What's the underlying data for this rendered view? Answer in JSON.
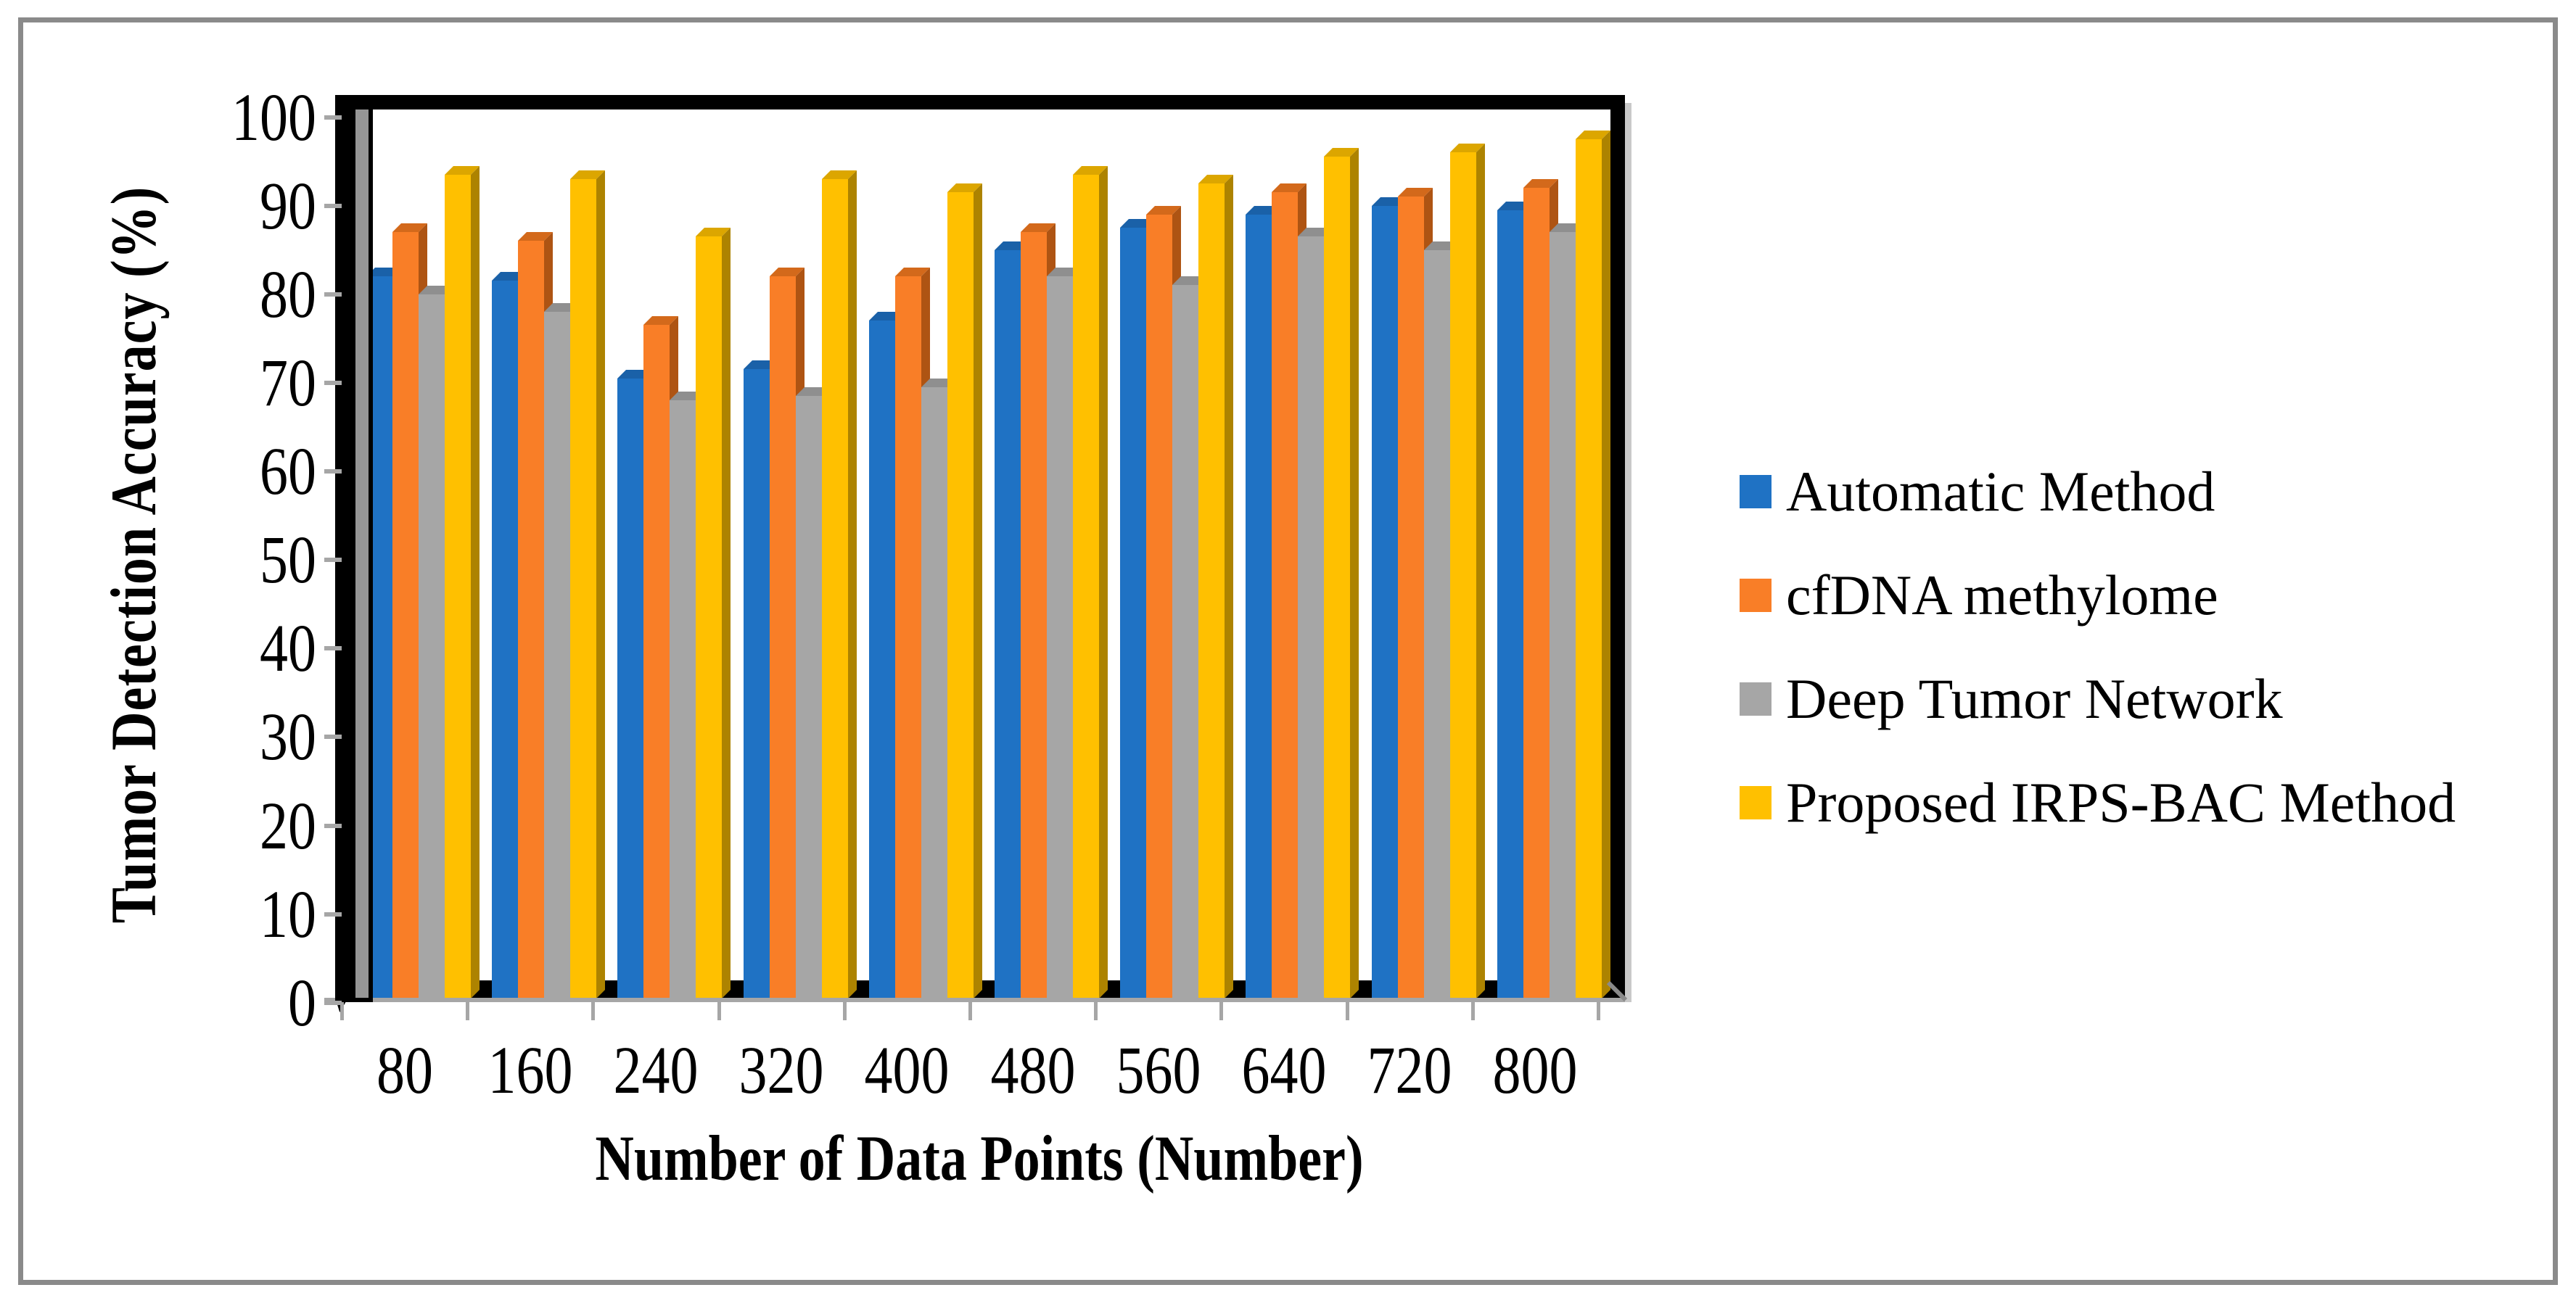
{
  "figure": {
    "background": "#FFFFFF",
    "outer_border_color": "#8A8A8A",
    "frame_color": "#000000",
    "axis_line_color": "#A6A6A6",
    "wall_strip_color": "#969696"
  },
  "chart_data": {
    "type": "bar",
    "style": "3d-clustered-column",
    "title": "",
    "xlabel": "Number of Data Points (Number)",
    "ylabel": "Tumor Detection Accuracy (%)",
    "categories": [
      "80",
      "160",
      "240",
      "320",
      "400",
      "480",
      "560",
      "640",
      "720",
      "800"
    ],
    "series": [
      {
        "name": "Automatic Method",
        "color": "#1F72C4",
        "top_color": "#1A61A8",
        "side_color": "#14508C",
        "values": [
          83,
          82.5,
          71.5,
          72.5,
          78,
          86,
          88.5,
          90,
          91,
          90.5
        ]
      },
      {
        "name": "cfDNA methylome",
        "color": "#F97E27",
        "top_color": "#D3691B",
        "side_color": "#AE5413",
        "values": [
          88,
          87,
          77.5,
          83,
          83,
          88,
          90,
          92.5,
          92,
          93
        ]
      },
      {
        "name": "Deep Tumor Network",
        "color": "#A6A6A6",
        "top_color": "#8F8F8F",
        "side_color": "#737373",
        "values": [
          81,
          79,
          69,
          69.5,
          70.5,
          83,
          82,
          87.5,
          86,
          88
        ]
      },
      {
        "name": "Proposed IRPS-BAC Method",
        "color": "#FFC000",
        "top_color": "#DCA600",
        "side_color": "#AD8300",
        "values": [
          94.5,
          94,
          87.5,
          94,
          92.5,
          94.5,
          93.5,
          96.5,
          97,
          98.5
        ]
      }
    ],
    "ylim": [
      0,
      100
    ],
    "ytick_step": 10,
    "yticks": [
      "100",
      "90",
      "80",
      "70",
      "60",
      "50",
      "40",
      "30",
      "20",
      "10",
      "0"
    ],
    "grid": false,
    "legend_position": "right"
  }
}
